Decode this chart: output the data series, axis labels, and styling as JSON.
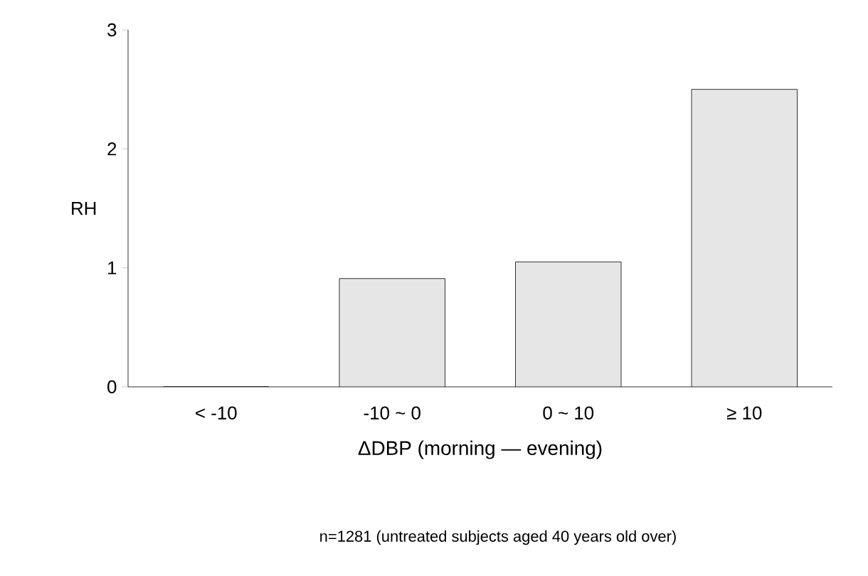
{
  "chart_data": {
    "type": "bar",
    "xlabel": "ΔDBP (morning — evening)",
    "ylabel": "RH",
    "categories": [
      "< -10",
      "-10 ~ 0",
      "0 ~ 10",
      "≥ 10"
    ],
    "values": [
      0,
      0.91,
      1.05,
      2.5
    ],
    "color": "#e6e6e6",
    "ylim": [
      0,
      3
    ],
    "yticks": [
      0,
      1,
      2,
      3
    ],
    "grid": false,
    "annotations": [
      "n=1281 (untreated subjects aged 40 years old over)"
    ]
  }
}
